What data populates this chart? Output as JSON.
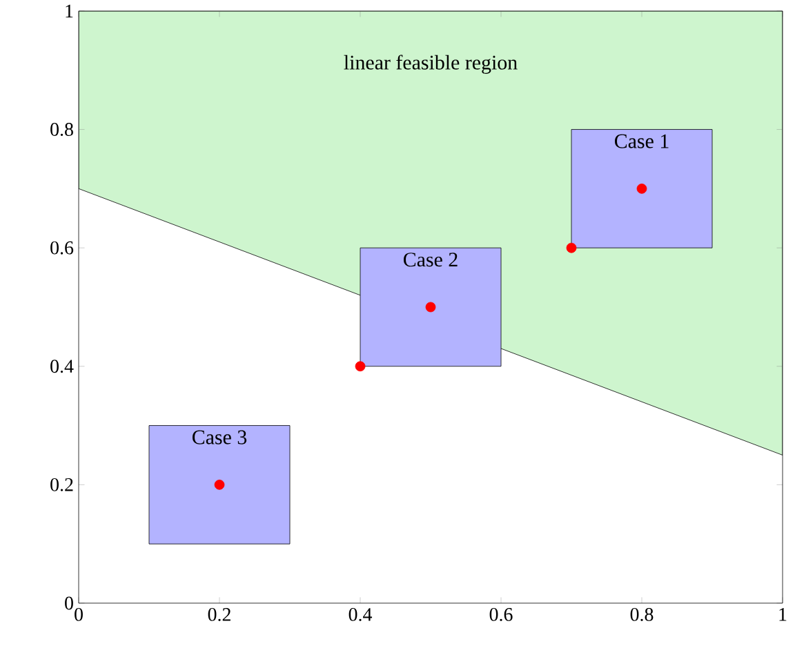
{
  "chart_data": {
    "type": "area",
    "xlim": [
      0,
      1
    ],
    "ylim": [
      0,
      1
    ],
    "xticks": [
      0,
      0.2,
      0.4,
      0.6,
      0.8,
      1
    ],
    "yticks": [
      0,
      0.2,
      0.4,
      0.6,
      0.8,
      1
    ],
    "grid": false,
    "series": [
      {
        "color": "#cef5ce",
        "x": [
          0,
          1,
          1,
          0
        ],
        "values": [
          0.7,
          0.25,
          1,
          1
        ]
      },
      {
        "color": "#b3b3ff",
        "x": [
          0.7,
          0.9,
          0.9,
          0.7
        ],
        "values": [
          0.6,
          0.6,
          0.8,
          0.8
        ]
      },
      {
        "color": "#b3b3ff",
        "x": [
          0.4,
          0.6,
          0.6,
          0.4
        ],
        "values": [
          0.4,
          0.4,
          0.6,
          0.6
        ]
      },
      {
        "color": "#b3b3ff",
        "x": [
          0.1,
          0.3,
          0.3,
          0.1
        ],
        "values": [
          0.1,
          0.1,
          0.3,
          0.3
        ]
      },
      {
        "type": "scatter",
        "color": "#ff0000",
        "marker": "circle",
        "x": [
          0.8,
          0.7,
          0.5,
          0.4,
          0.2
        ],
        "values": [
          0.7,
          0.6,
          0.5,
          0.4,
          0.2
        ]
      }
    ],
    "annotations": [
      "linear feasible region",
      "Case 1",
      "Case 2",
      "Case 3"
    ]
  }
}
